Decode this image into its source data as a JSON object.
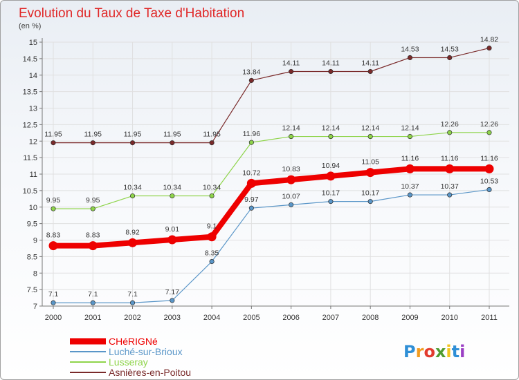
{
  "colors": {
    "title": "#e02727",
    "axis": "#777777",
    "grid": "#e0e0e0"
  },
  "chart_data": {
    "type": "line",
    "title": "Evolution du Taux de Taxe d'Habitation",
    "subtitle": "(en %)",
    "xlabel": "",
    "ylabel": "",
    "categories": [
      "2000",
      "2001",
      "2002",
      "2003",
      "2004",
      "2005",
      "2006",
      "2007",
      "2008",
      "2009",
      "2010",
      "2011"
    ],
    "ylim": [
      7,
      15
    ],
    "yticks": [
      "7",
      "7.5",
      "8",
      "8.5",
      "9",
      "9.5",
      "10",
      "10.5",
      "11",
      "11.5",
      "12",
      "12.5",
      "13",
      "13.5",
      "14",
      "14.5",
      "15"
    ],
    "grid": true,
    "legend_position": "bottom-left",
    "series": [
      {
        "name": "CHéRIGNé",
        "color": "#ee0000",
        "width": 8,
        "values": [
          8.83,
          8.83,
          8.92,
          9.01,
          9.1,
          10.72,
          10.83,
          10.94,
          11.05,
          11.16,
          11.16,
          11.16
        ],
        "labels": [
          "8.83",
          "8.83",
          "8.92",
          "9.01",
          "9.1",
          "10.72",
          "10.83",
          "10.94",
          "11.05",
          "11.16",
          "11.16",
          "11.16"
        ]
      },
      {
        "name": "Luché-sur-Brioux",
        "color": "#5a96c8",
        "width": 1.2,
        "values": [
          7.1,
          7.1,
          7.1,
          7.17,
          8.35,
          9.97,
          10.07,
          10.17,
          10.17,
          10.37,
          10.37,
          10.53
        ],
        "labels": [
          "7.1",
          "7.1",
          "7.1",
          "7.17",
          "8.35",
          "9.97",
          "10.07",
          "10.17",
          "10.17",
          "10.37",
          "10.37",
          "10.53"
        ]
      },
      {
        "name": "Lusseray",
        "color": "#8ed44a",
        "width": 1.2,
        "values": [
          9.95,
          9.95,
          10.34,
          10.34,
          10.34,
          11.96,
          12.14,
          12.14,
          12.14,
          12.14,
          12.26,
          12.26
        ],
        "labels": [
          "9.95",
          "9.95",
          "10.34",
          "10.34",
          "10.34",
          "11.96",
          "12.14",
          "12.14",
          "12.14",
          "12.14",
          "12.26",
          "12.26"
        ]
      },
      {
        "name": "Asnières-en-Poitou",
        "color": "#7a2a2a",
        "width": 1.2,
        "values": [
          11.95,
          11.95,
          11.95,
          11.95,
          11.95,
          13.84,
          14.11,
          14.11,
          14.11,
          14.53,
          14.53,
          14.82
        ],
        "labels": [
          "11.95",
          "11.95",
          "11.95",
          "11.95",
          "11.95",
          "13.84",
          "14.11",
          "14.11",
          "14.11",
          "14.53",
          "14.53",
          "14.82"
        ]
      }
    ]
  },
  "logo": {
    "letters": [
      "P",
      "r",
      "o",
      "x",
      "i",
      "t",
      "i"
    ],
    "colors": [
      "#2f8fd6",
      "#f29b1e",
      "#e23b2e",
      "#4f9b2f",
      "#f2c41e",
      "#2f8fd6",
      "#9b3fc4"
    ]
  }
}
